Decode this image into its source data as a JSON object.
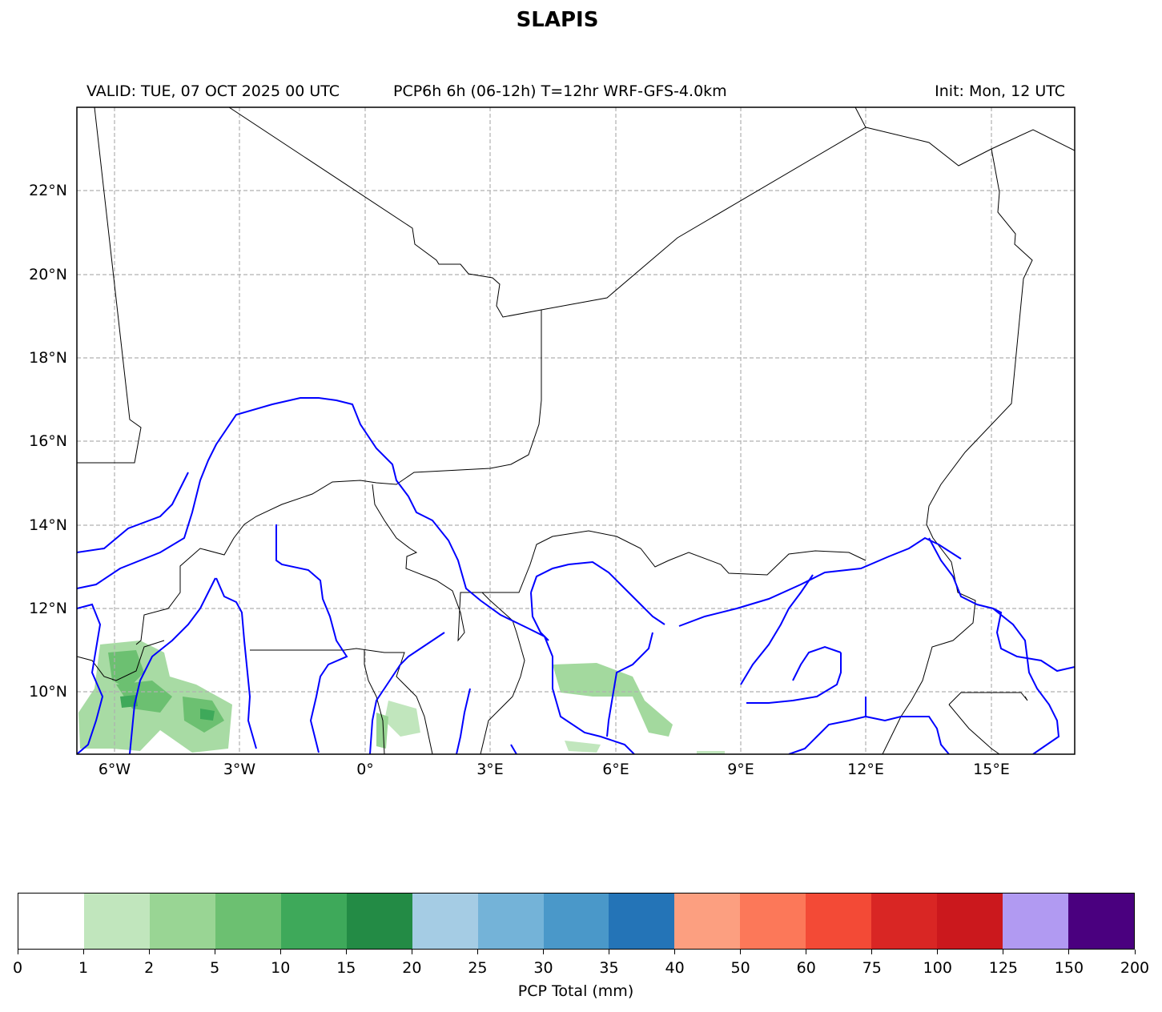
{
  "title": "SLAPIS",
  "subtitle": {
    "valid": "VALID: TUE, 07 OCT 2025 00 UTC",
    "product": "PCP6h 6h (06-12h) T=12hr WRF-GFS-4.0km",
    "init": "Init: Mon, 12 UTC"
  },
  "map": {
    "lon_range": [
      -7,
      17
    ],
    "lat_range": [
      8.5,
      24
    ],
    "gridlines": "dashed",
    "lat_labels": [
      "22°N",
      "20°N",
      "18°N",
      "16°N",
      "14°N",
      "12°N",
      "10°N"
    ],
    "lon_labels": [
      "6°W",
      "3°W",
      "0°",
      "3°E",
      "6°E",
      "9°E",
      "12°E",
      "15°E"
    ],
    "border_color": "#000000",
    "river_color": "#0000ff"
  },
  "colorbar": {
    "label": "PCP Total (mm)",
    "ticks": [
      "0",
      "1",
      "2",
      "5",
      "10",
      "15",
      "20",
      "25",
      "30",
      "35",
      "40",
      "50",
      "60",
      "75",
      "100",
      "125",
      "150",
      "200"
    ],
    "colors": [
      "#ffffff",
      "#c1e6bd",
      "#99d594",
      "#6cc071",
      "#3ea95a",
      "#238b45",
      "#a5cce4",
      "#74b3d8",
      "#4a98c9",
      "#2474b7",
      "#fc9f80",
      "#fc7859",
      "#f34a36",
      "#d92624",
      "#cb181d",
      "#b19af2",
      "#4a007f"
    ]
  }
}
